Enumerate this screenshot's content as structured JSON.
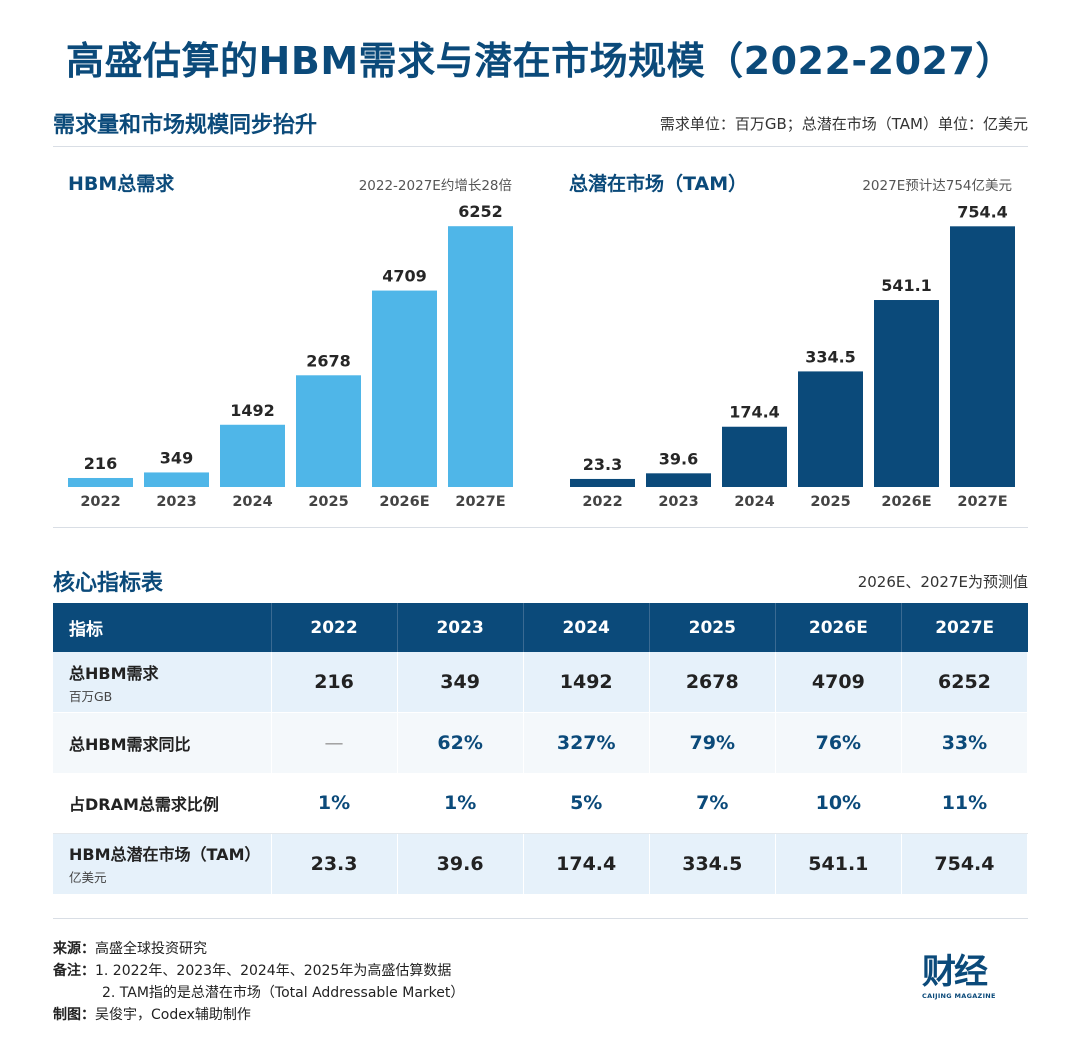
{
  "title": "高盛估算的HBM需求与潜在市场规模（2022-2027）",
  "section1": {
    "heading": "需求量和市场规模同步抬升",
    "units_note": "需求单位：百万GB；总潜在市场（TAM）单位：亿美元"
  },
  "chart_data": [
    {
      "type": "bar",
      "title": "HBM总需求",
      "subtitle": "2022-2027E约增长28倍",
      "categories": [
        "2022",
        "2023",
        "2024",
        "2025",
        "2026E",
        "2027E"
      ],
      "values": [
        216,
        349,
        1492,
        2678,
        4709,
        6252
      ],
      "value_labels": [
        "216",
        "349",
        "1492",
        "2678",
        "4709",
        "6252"
      ],
      "ylim": [
        0,
        7000
      ],
      "grid": false,
      "color": "#4fb6e8"
    },
    {
      "type": "bar",
      "title": "总潜在市场（TAM）",
      "subtitle": "2027E预计达754亿美元",
      "categories": [
        "2022",
        "2023",
        "2024",
        "2025",
        "2026E",
        "2027E"
      ],
      "values": [
        23.3,
        39.6,
        174.4,
        334.5,
        541.1,
        754.4
      ],
      "value_labels": [
        "23.3",
        "39.6",
        "174.4",
        "334.5",
        "541.1",
        "754.4"
      ],
      "ylim": [
        0,
        845
      ],
      "grid": false,
      "color": "#0b4a7a"
    }
  ],
  "section2": {
    "heading": "核心指标表",
    "note": "2026E、2027E为预测值"
  },
  "table": {
    "headers": [
      "指标",
      "2022",
      "2023",
      "2024",
      "2025",
      "2026E",
      "2027E"
    ],
    "rows": [
      {
        "label": "总HBM需求",
        "sub": "百万GB",
        "cells": [
          "216",
          "349",
          "1492",
          "2678",
          "4709",
          "6252"
        ]
      },
      {
        "label": "总HBM需求同比",
        "sub": "",
        "cells": [
          "—",
          "62%",
          "327%",
          "79%",
          "76%",
          "33%"
        ]
      },
      {
        "label": "占DRAM总需求比例",
        "sub": "",
        "cells": [
          "1%",
          "1%",
          "5%",
          "7%",
          "10%",
          "11%"
        ]
      },
      {
        "label": "HBM总潜在市场（TAM）",
        "sub": "亿美元",
        "cells": [
          "23.3",
          "39.6",
          "174.4",
          "334.5",
          "541.1",
          "754.4"
        ]
      }
    ]
  },
  "footer": {
    "source_key": "来源：",
    "source": "高盛全球投资研究",
    "notes_key": "备注：",
    "note1": "1. 2022年、2023年、2024年、2025年为高盛估算数据",
    "note2": "2. TAM指的是总潜在市场（Total Addressable Market）",
    "credit_key": "制图：",
    "credit": "吴俊宇，Codex辅助制作"
  },
  "logo": {
    "cn": "财经",
    "en": "CAIJING MAGAZINE"
  },
  "colors": {
    "primary": "#0b4a7a",
    "light_bar": "#4fb6e8",
    "row_shade": "#e6f1fa"
  }
}
